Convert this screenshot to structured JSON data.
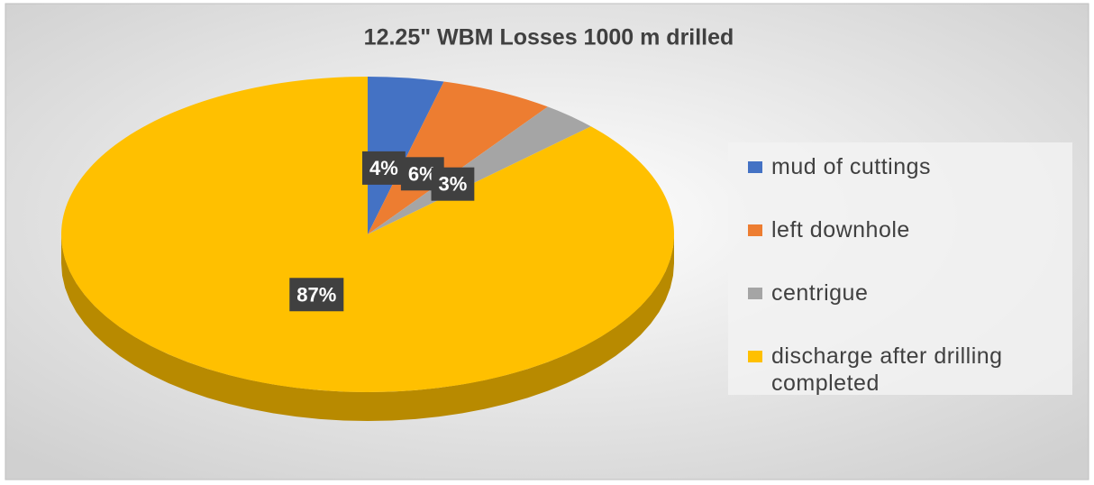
{
  "chart_data": {
    "type": "pie",
    "title": "12.25\" WBM Losses 1000 m drilled",
    "categories": [
      "mud of cuttings",
      "left downhole",
      "centrigue",
      "discharge after drilling  completed"
    ],
    "values": [
      4,
      6,
      3,
      87
    ],
    "value_labels": [
      "4%",
      "6%",
      "3%",
      "87%"
    ],
    "colors": [
      "#4472c4",
      "#ed7d31",
      "#a5a5a5",
      "#ffc000"
    ],
    "legend": "right"
  }
}
